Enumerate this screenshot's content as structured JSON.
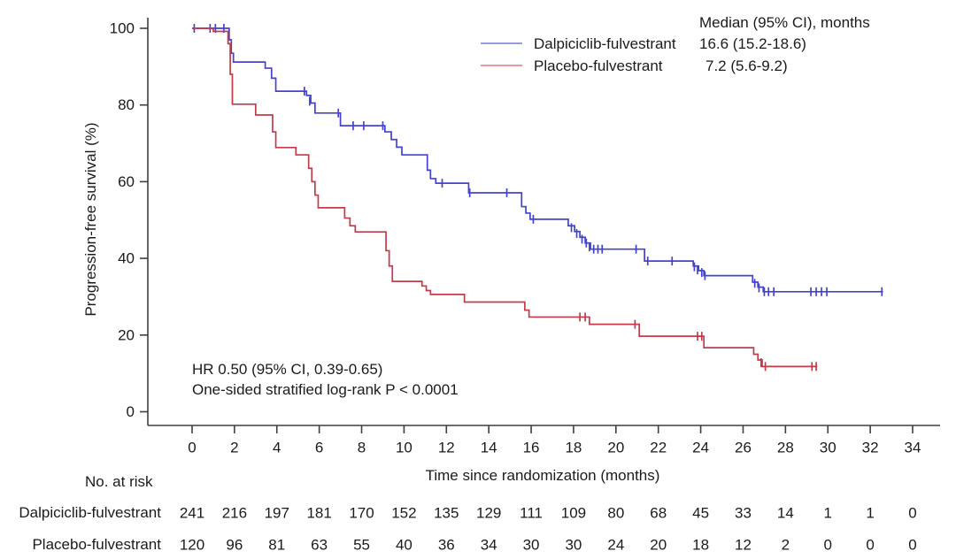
{
  "figure": {
    "legend": {
      "header": "Median (95% CI), months",
      "rows": [
        {
          "label": "Dalpiciclib-fulvestrant",
          "median": "16.6 (15.2-18.6)",
          "swatch_color": "#9a9ae2"
        },
        {
          "label": "Placebo-fulvestrant",
          "median": "7.2 (5.6-9.2)",
          "swatch_color": "#e79aa3"
        }
      ]
    },
    "annotation": {
      "line1": "HR 0.50 (95% CI, 0.39-0.65)",
      "line2": "One-sided stratified log-rank P < 0.0001"
    }
  },
  "chart_data": {
    "type": "line",
    "subtype": "kaplan-meier-step",
    "title": "",
    "xlabel": "Time since randomization (months)",
    "ylabel": "Progression-free survival (%)",
    "xlim": [
      0,
      34
    ],
    "ylim": [
      0,
      100
    ],
    "xticks": [
      0,
      2,
      4,
      6,
      8,
      10,
      12,
      14,
      16,
      18,
      20,
      22,
      24,
      26,
      28,
      30,
      32,
      34
    ],
    "yticks": [
      0,
      20,
      40,
      60,
      80,
      100
    ],
    "grid": false,
    "legend_position": "top-right",
    "axis_color": "#3f3f3f",
    "series": [
      {
        "name": "Dalpiciclib-fulvestrant",
        "color": "#4343d0",
        "median_ci_months": "16.6 (15.2-18.6)",
        "start": [
          0,
          100
        ],
        "end_time": 32.6,
        "steps": [
          [
            1.75,
            97
          ],
          [
            1.85,
            93.5
          ],
          [
            1.95,
            91.2
          ],
          [
            3.45,
            89.6
          ],
          [
            3.75,
            87
          ],
          [
            3.95,
            83.6
          ],
          [
            5.4,
            82.5
          ],
          [
            5.6,
            80.5
          ],
          [
            5.8,
            77.9
          ],
          [
            7.0,
            74.6
          ],
          [
            9.1,
            73
          ],
          [
            9.4,
            71
          ],
          [
            9.65,
            69
          ],
          [
            9.9,
            67
          ],
          [
            11.1,
            63
          ],
          [
            11.25,
            60.8
          ],
          [
            11.5,
            59.6
          ],
          [
            13.05,
            57.1
          ],
          [
            15.55,
            53.5
          ],
          [
            15.75,
            51.8
          ],
          [
            15.95,
            50.2
          ],
          [
            17.75,
            48.5
          ],
          [
            18.05,
            47
          ],
          [
            18.3,
            45.5
          ],
          [
            18.55,
            44
          ],
          [
            18.8,
            42.4
          ],
          [
            21.35,
            39.3
          ],
          [
            23.65,
            38
          ],
          [
            23.9,
            36.8
          ],
          [
            24.15,
            35.5
          ],
          [
            26.45,
            33.8
          ],
          [
            26.7,
            32.5
          ],
          [
            26.95,
            31.3
          ]
        ],
        "censor_marks": [
          [
            0.1,
            100
          ],
          [
            0.85,
            100
          ],
          [
            1.1,
            100
          ],
          [
            1.5,
            100
          ],
          [
            5.3,
            83.6
          ],
          [
            5.55,
            81
          ],
          [
            6.9,
            77.9
          ],
          [
            7.6,
            74.6
          ],
          [
            8.1,
            74.6
          ],
          [
            9.0,
            74.6
          ],
          [
            11.8,
            59.6
          ],
          [
            13.1,
            57.1
          ],
          [
            14.85,
            57.1
          ],
          [
            16.1,
            50.2
          ],
          [
            17.9,
            48
          ],
          [
            18.15,
            46.5
          ],
          [
            18.4,
            45
          ],
          [
            18.6,
            44
          ],
          [
            18.75,
            43
          ],
          [
            18.95,
            42.4
          ],
          [
            19.15,
            42.4
          ],
          [
            19.35,
            42.4
          ],
          [
            20.95,
            42.4
          ],
          [
            21.5,
            39.3
          ],
          [
            22.65,
            39.3
          ],
          [
            23.7,
            37.8
          ],
          [
            23.85,
            37
          ],
          [
            24.05,
            36.3
          ],
          [
            24.2,
            35.5
          ],
          [
            26.55,
            33.5
          ],
          [
            26.75,
            32.3
          ],
          [
            27.0,
            31.3
          ],
          [
            27.2,
            31.3
          ],
          [
            27.45,
            31.3
          ],
          [
            29.2,
            31.3
          ],
          [
            29.45,
            31.3
          ],
          [
            29.7,
            31.3
          ],
          [
            29.95,
            31.3
          ],
          [
            32.55,
            31.3
          ]
        ]
      },
      {
        "name": "Placebo-fulvestrant",
        "color": "#c23b49",
        "median_ci_months": "7.2 (5.6-9.2)",
        "start": [
          0,
          100
        ],
        "end_time": 29.5,
        "steps": [
          [
            1.0,
            99.2
          ],
          [
            1.7,
            96
          ],
          [
            1.8,
            88
          ],
          [
            1.9,
            80.2
          ],
          [
            3.0,
            77.4
          ],
          [
            3.8,
            73
          ],
          [
            3.95,
            68.9
          ],
          [
            4.9,
            67
          ],
          [
            5.5,
            63.5
          ],
          [
            5.65,
            60
          ],
          [
            5.8,
            56.5
          ],
          [
            5.95,
            53.2
          ],
          [
            7.2,
            50.5
          ],
          [
            7.45,
            48.5
          ],
          [
            7.7,
            46.9
          ],
          [
            9.15,
            42
          ],
          [
            9.3,
            38
          ],
          [
            9.45,
            34
          ],
          [
            10.85,
            32.8
          ],
          [
            11.05,
            31.6
          ],
          [
            11.25,
            30.6
          ],
          [
            12.85,
            28.6
          ],
          [
            15.7,
            26.5
          ],
          [
            15.9,
            24.7
          ],
          [
            18.75,
            22.8
          ],
          [
            21.1,
            19.7
          ],
          [
            24.15,
            16.7
          ],
          [
            26.5,
            15
          ],
          [
            26.7,
            13.5
          ],
          [
            26.9,
            11.8
          ]
        ],
        "censor_marks": [
          [
            1.7,
            97
          ],
          [
            18.3,
            24.7
          ],
          [
            18.55,
            24.7
          ],
          [
            20.9,
            22.8
          ],
          [
            23.85,
            19.7
          ],
          [
            24.05,
            19.7
          ],
          [
            26.85,
            12.8
          ],
          [
            27.05,
            11.8
          ],
          [
            29.25,
            11.8
          ],
          [
            29.45,
            11.8
          ]
        ]
      }
    ]
  },
  "risk_table": {
    "title": "No. at risk",
    "times": [
      0,
      2,
      4,
      6,
      8,
      10,
      12,
      14,
      16,
      18,
      20,
      22,
      24,
      26,
      28,
      30,
      32,
      34
    ],
    "rows": [
      {
        "label": "Dalpiciclib-fulvestrant",
        "values": [
          241,
          216,
          197,
          181,
          170,
          152,
          135,
          129,
          111,
          109,
          80,
          68,
          45,
          33,
          14,
          1,
          1,
          0
        ]
      },
      {
        "label": "Placebo-fulvestrant",
        "values": [
          120,
          96,
          81,
          63,
          55,
          40,
          36,
          34,
          30,
          30,
          24,
          20,
          18,
          12,
          2,
          0,
          0,
          0
        ]
      }
    ]
  }
}
